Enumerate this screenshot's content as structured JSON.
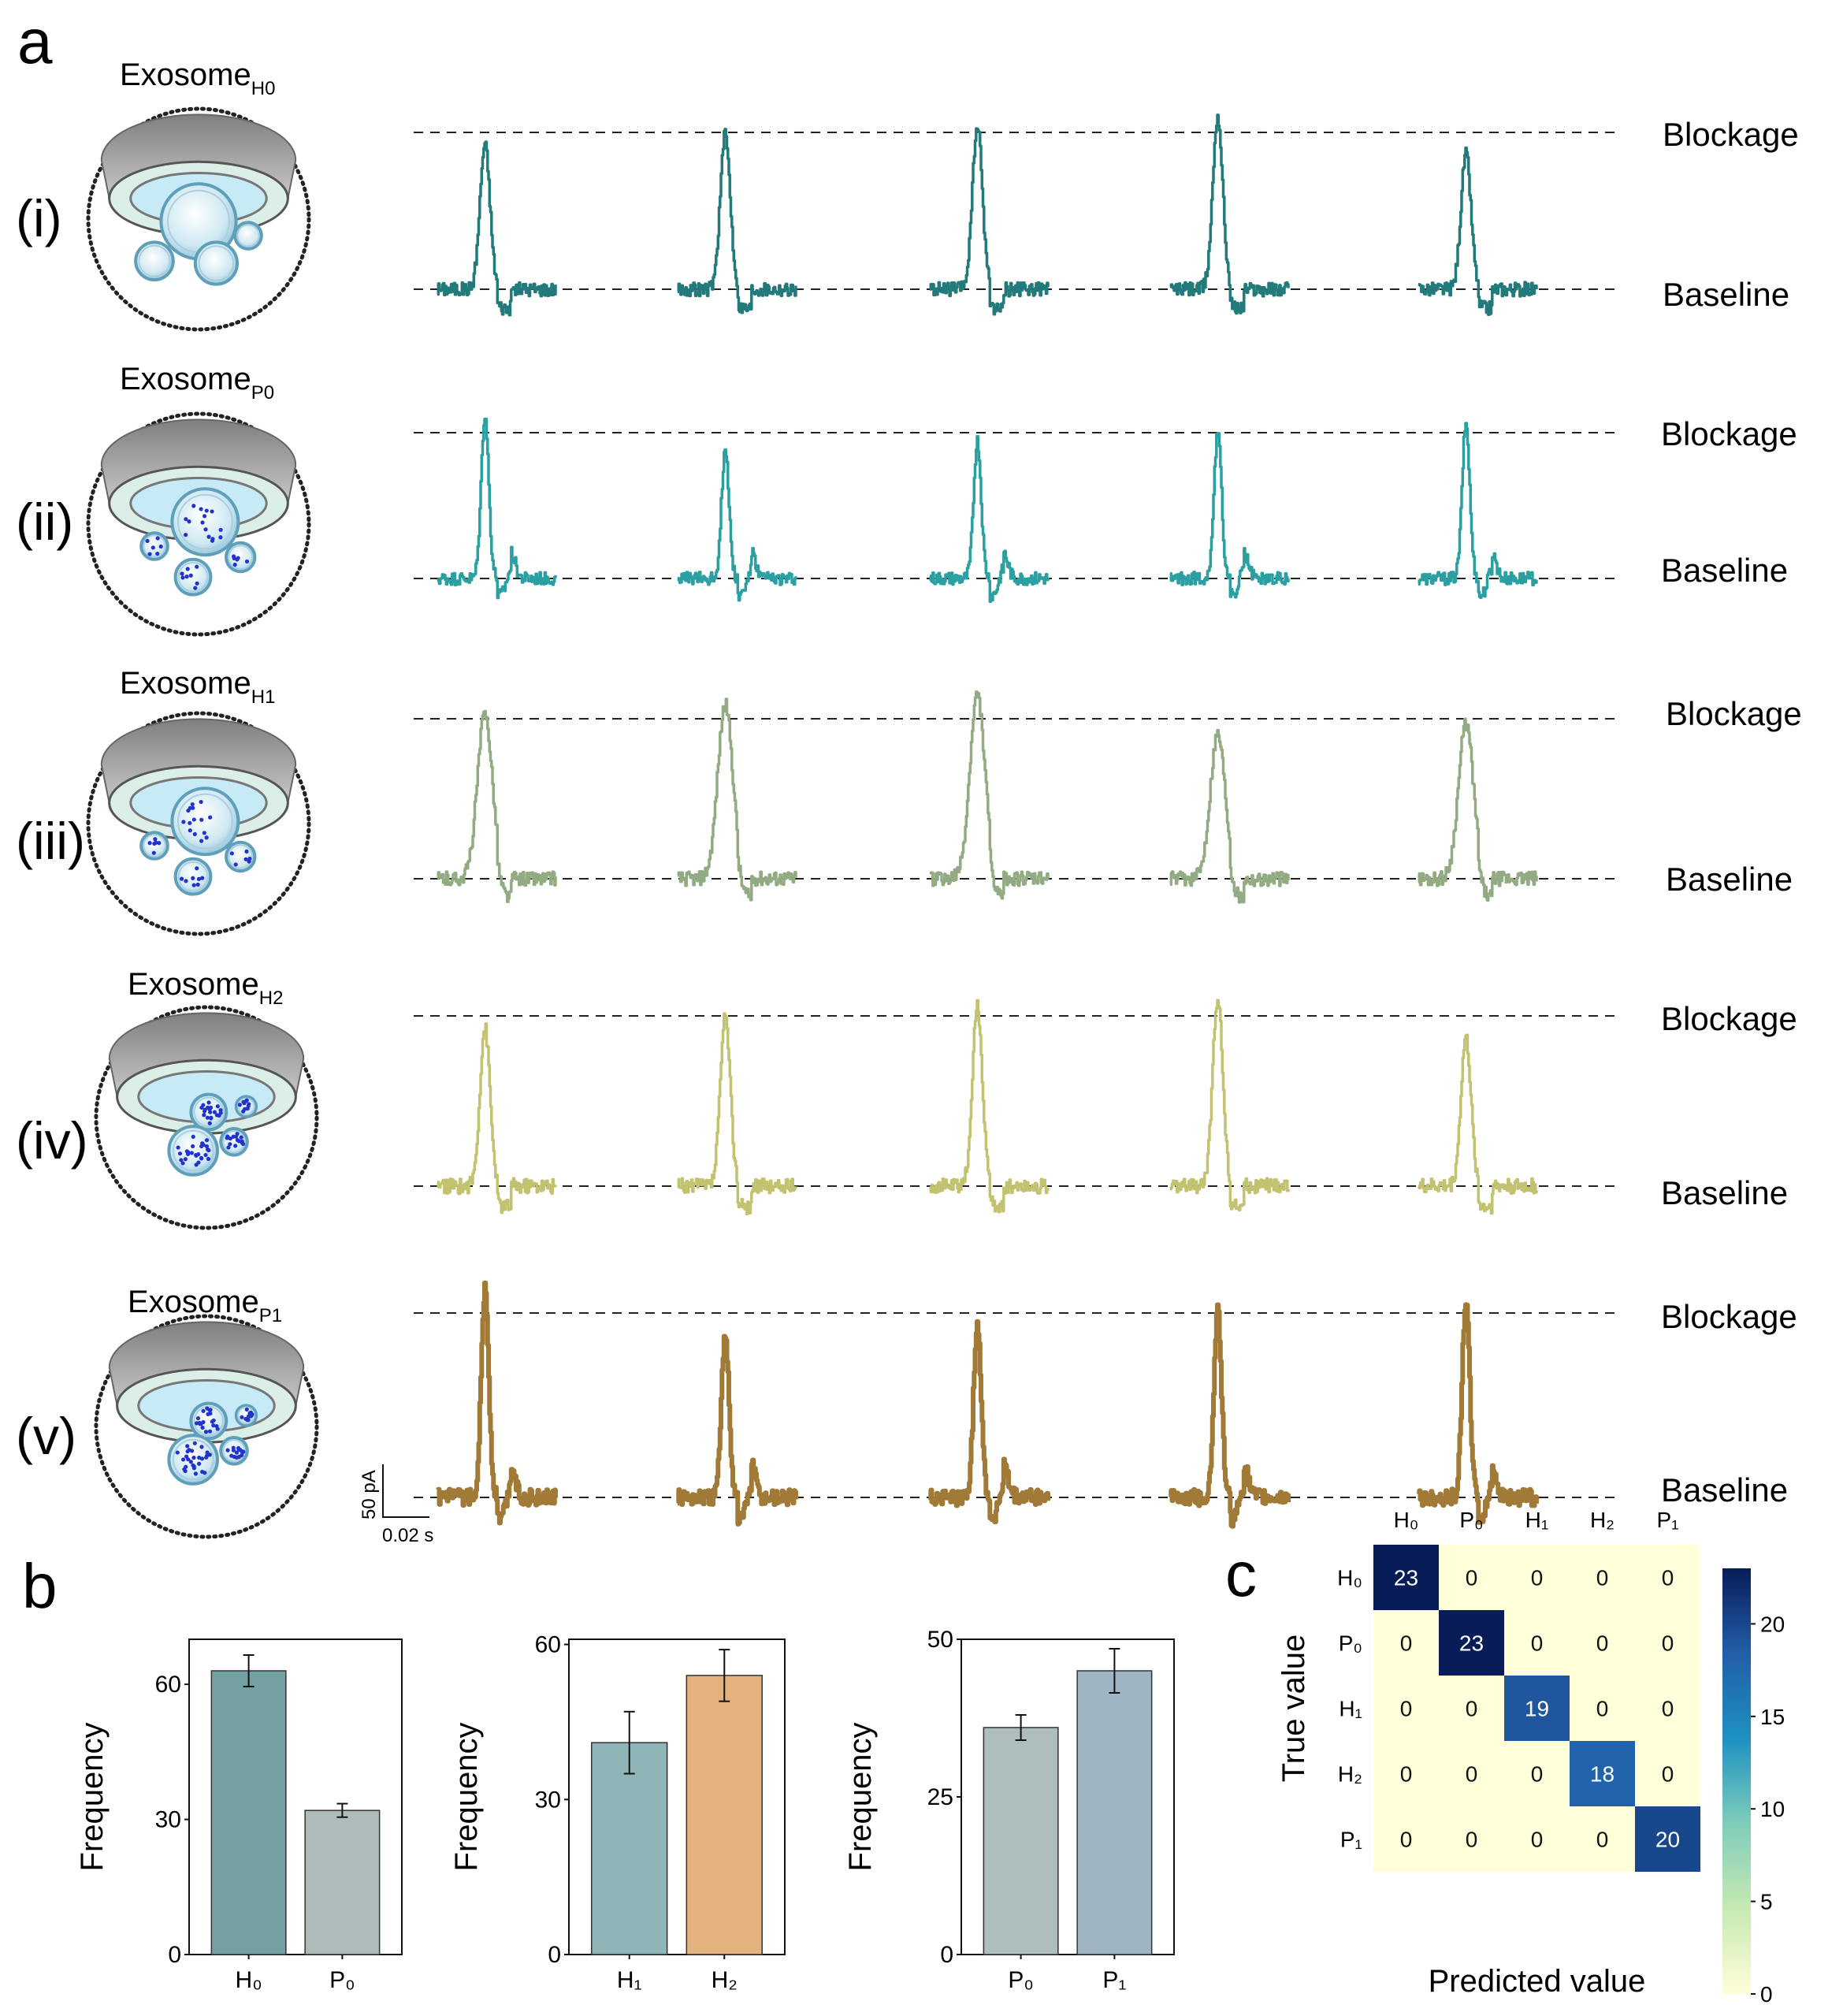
{
  "panels": {
    "a": "a",
    "b": "b",
    "c": "c"
  },
  "rows": [
    {
      "numeral": "(i)",
      "title": "Exosome",
      "sub": "H0",
      "color": "#227a7a",
      "inner": "plain"
    },
    {
      "numeral": "(ii)",
      "title": "Exosome",
      "sub": "P0",
      "color": "#2aa0a3",
      "inner": "dotsFew"
    },
    {
      "numeral": "(iii)",
      "title": "Exosome",
      "sub": "H1",
      "color": "#93ab82",
      "inner": "dotsFew"
    },
    {
      "numeral": "(iv)",
      "title": "Exosome",
      "sub": "H2",
      "color": "#c2c270",
      "inner": "dotsMany"
    },
    {
      "numeral": "(v)",
      "title": "Exosome",
      "sub": "P1",
      "color": "#a27a38",
      "inner": "dotsMany"
    }
  ],
  "level_labels": {
    "blockage": "Blockage",
    "baseline": "Baseline"
  },
  "scalebar": {
    "current": "50 pA",
    "time": "0.02 s"
  },
  "chart_data": [
    {
      "type": "bar",
      "categories": [
        "H₀",
        "P₀"
      ],
      "values": [
        63,
        32
      ],
      "errors": [
        3.5,
        1.5
      ],
      "colors": [
        "#73a0a0",
        "#adbbbb"
      ],
      "ylabel": "Frequency",
      "yticks": [
        0,
        30,
        60
      ],
      "ylim": [
        0,
        70
      ]
    },
    {
      "type": "bar",
      "categories": [
        "H₁",
        "H₂"
      ],
      "values": [
        41,
        54
      ],
      "errors": [
        6,
        5
      ],
      "colors": [
        "#90b5b8",
        "#e4b27f"
      ],
      "ylabel": "Frequency",
      "yticks": [
        0,
        30,
        60
      ],
      "ylim": [
        0,
        61
      ]
    },
    {
      "type": "bar",
      "categories": [
        "P₀",
        "P₁"
      ],
      "values": [
        36,
        45
      ],
      "errors": [
        2,
        3.5
      ],
      "colors": [
        "#aebdbd",
        "#a0b5c4"
      ],
      "ylabel": "Frequency",
      "yticks": [
        0,
        25,
        50
      ],
      "ylim": [
        0,
        50
      ]
    },
    {
      "type": "heatmap",
      "columns": [
        "H₀",
        "P₀",
        "H₁",
        "H₂",
        "P₁"
      ],
      "rows": [
        "H₀",
        "P₀",
        "H₁",
        "H₂",
        "P₁"
      ],
      "matrix": [
        [
          23,
          0,
          0,
          0,
          0
        ],
        [
          0,
          23,
          0,
          0,
          0
        ],
        [
          0,
          0,
          19,
          0,
          0
        ],
        [
          0,
          0,
          0,
          18,
          0
        ],
        [
          0,
          0,
          0,
          0,
          20
        ]
      ],
      "xlabel": "Predicted value",
      "ylabel": "True value",
      "colorbar_ticks": [
        0,
        5,
        10,
        15,
        20
      ],
      "colorbar_range": [
        0,
        23
      ]
    }
  ]
}
